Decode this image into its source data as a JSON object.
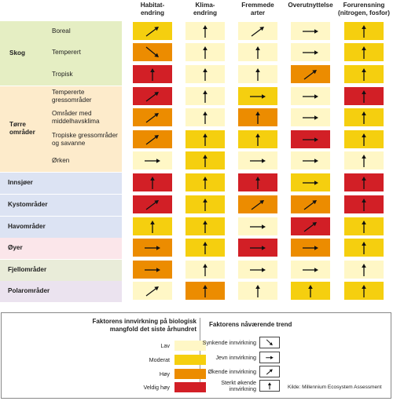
{
  "colors": {
    "low": "#fff7c6",
    "moderate": "#f5cf0f",
    "high": "#ec8c00",
    "very_high": "#d21f26",
    "band_skog": "#e5eec3",
    "band_torre": "#fdebcb",
    "band_innsjoer": "#dce3f3",
    "band_kyst": "#dce3f3",
    "band_hav": "#dce3f3",
    "band_oyer": "#fbe6ea",
    "band_fjell": "#e9ecd9",
    "band_polar": "#ebe3ef"
  },
  "columns": [
    {
      "key": "habitat",
      "label": "Habitat-\nendring"
    },
    {
      "key": "klima",
      "label": "Klima-\nendring"
    },
    {
      "key": "fremmede",
      "label": "Fremmede\narter"
    },
    {
      "key": "overutnyttelse",
      "label": "Overutnyttelse"
    },
    {
      "key": "forurensning",
      "label": "Forurensning\n(nitrogen, fosfor)"
    }
  ],
  "groups": [
    {
      "key": "skog",
      "label": "Skog",
      "band": "band_skog",
      "rows": [
        {
          "label": "Boreal",
          "cells": [
            [
              "moderate",
              "up-right"
            ],
            [
              "low",
              "up"
            ],
            [
              "low",
              "up-right"
            ],
            [
              "low",
              "right"
            ],
            [
              "moderate",
              "up"
            ]
          ]
        },
        {
          "label": "Temperert",
          "cells": [
            [
              "high",
              "down-right"
            ],
            [
              "low",
              "up"
            ],
            [
              "low",
              "up"
            ],
            [
              "low",
              "right"
            ],
            [
              "moderate",
              "up"
            ]
          ]
        },
        {
          "label": "Tropisk",
          "cells": [
            [
              "very_high",
              "up"
            ],
            [
              "low",
              "up"
            ],
            [
              "low",
              "up"
            ],
            [
              "high",
              "up-right"
            ],
            [
              "moderate",
              "up"
            ]
          ]
        }
      ]
    },
    {
      "key": "torre",
      "label": "Tørre\nområder",
      "band": "band_torre",
      "rows": [
        {
          "label": "Tempererte\ngressområder",
          "cells": [
            [
              "very_high",
              "up-right"
            ],
            [
              "low",
              "up"
            ],
            [
              "moderate",
              "right"
            ],
            [
              "low",
              "right"
            ],
            [
              "very_high",
              "up"
            ]
          ]
        },
        {
          "label": "Områder med\nmiddelhavsklima",
          "cells": [
            [
              "high",
              "up-right"
            ],
            [
              "low",
              "up"
            ],
            [
              "high",
              "up"
            ],
            [
              "low",
              "right"
            ],
            [
              "moderate",
              "up"
            ]
          ]
        },
        {
          "label": "Tropiske gressområder\nog savanne",
          "cells": [
            [
              "high",
              "up-right"
            ],
            [
              "moderate",
              "up"
            ],
            [
              "moderate",
              "up"
            ],
            [
              "very_high",
              "right"
            ],
            [
              "moderate",
              "up"
            ]
          ]
        },
        {
          "label": "Ørken",
          "cells": [
            [
              "low",
              "right"
            ],
            [
              "moderate",
              "up"
            ],
            [
              "low",
              "right"
            ],
            [
              "low",
              "right"
            ],
            [
              "low",
              "up"
            ]
          ]
        }
      ]
    },
    {
      "key": "innsjoer",
      "label": "Innsjøer",
      "band": "band_innsjoer",
      "rows": [
        {
          "label": "",
          "cells": [
            [
              "very_high",
              "up"
            ],
            [
              "moderate",
              "up"
            ],
            [
              "very_high",
              "up"
            ],
            [
              "moderate",
              "right"
            ],
            [
              "very_high",
              "up"
            ]
          ]
        }
      ]
    },
    {
      "key": "kyst",
      "label": "Kystområder",
      "band": "band_kyst",
      "rows": [
        {
          "label": "",
          "cells": [
            [
              "very_high",
              "up-right"
            ],
            [
              "moderate",
              "up"
            ],
            [
              "high",
              "up-right"
            ],
            [
              "high",
              "up-right"
            ],
            [
              "very_high",
              "up"
            ]
          ]
        }
      ]
    },
    {
      "key": "hav",
      "label": "Havområder",
      "band": "band_hav",
      "rows": [
        {
          "label": "",
          "cells": [
            [
              "moderate",
              "up"
            ],
            [
              "moderate",
              "up"
            ],
            [
              "low",
              "right"
            ],
            [
              "very_high",
              "up-right"
            ],
            [
              "moderate",
              "up"
            ]
          ]
        }
      ]
    },
    {
      "key": "oyer",
      "label": "Øyer",
      "band": "band_oyer",
      "rows": [
        {
          "label": "",
          "cells": [
            [
              "high",
              "right"
            ],
            [
              "moderate",
              "up"
            ],
            [
              "very_high",
              "right"
            ],
            [
              "high",
              "right"
            ],
            [
              "moderate",
              "up"
            ]
          ]
        }
      ]
    },
    {
      "key": "fjell",
      "label": "Fjellområder",
      "band": "band_fjell",
      "rows": [
        {
          "label": "",
          "cells": [
            [
              "high",
              "right"
            ],
            [
              "low",
              "up"
            ],
            [
              "low",
              "right"
            ],
            [
              "low",
              "right"
            ],
            [
              "low",
              "up"
            ]
          ]
        }
      ]
    },
    {
      "key": "polar",
      "label": "Polarområder",
      "band": "band_polar",
      "rows": [
        {
          "label": "",
          "cells": [
            [
              "low",
              "up-right"
            ],
            [
              "high",
              "up"
            ],
            [
              "low",
              "up"
            ],
            [
              "moderate",
              "up"
            ],
            [
              "moderate",
              "up"
            ]
          ]
        }
      ]
    }
  ],
  "legend": {
    "impact_title": "Faktorens innvirkning på biologisk\nmangfold det siste århundret",
    "impact_levels": [
      {
        "key": "low",
        "label": "Lav"
      },
      {
        "key": "moderate",
        "label": "Moderat"
      },
      {
        "key": "high",
        "label": "Høy"
      },
      {
        "key": "very_high",
        "label": "Veldig høy"
      }
    ],
    "trend_title": "Faktorens nåværende trend",
    "trends": [
      {
        "dir": "down-right",
        "label": "Synkende innvirkning"
      },
      {
        "dir": "right",
        "label": "Jevn innvirkning"
      },
      {
        "dir": "up-right",
        "label": "Økende innvirkning"
      },
      {
        "dir": "up",
        "label": "Sterkt økende\ninnvirkning"
      }
    ],
    "source": "Kilde:   Millennium Ecosystem Assessment"
  }
}
